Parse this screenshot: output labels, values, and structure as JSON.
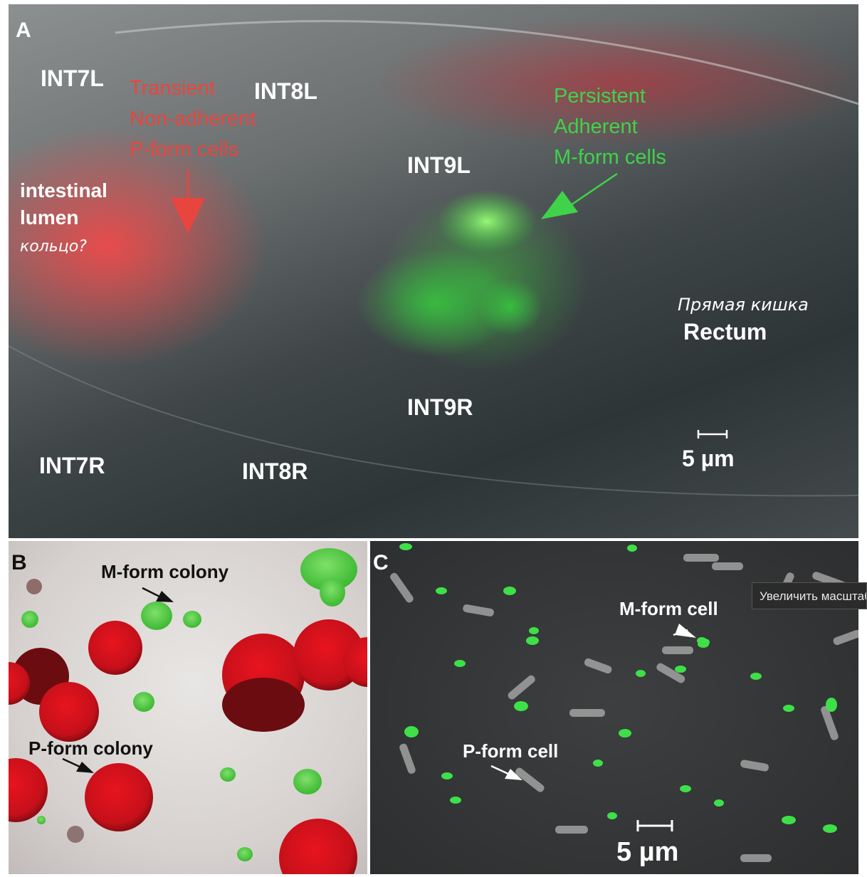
{
  "panel_a": {
    "letter": "A",
    "int7l": "INT7L",
    "int8l": "INT8L",
    "int9l": "INT9L",
    "int7r": "INT7R",
    "int8r": "INT8R",
    "int9r": "INT9R",
    "lumen_line1": "intestinal",
    "lumen_line2": "lumen",
    "lumen_note": "кольцо?",
    "transient_line1": "Transient",
    "transient_line2": "Non-adherent",
    "transient_line3": "P-form cells",
    "persistent_line1": "Persistent",
    "persistent_line2": "Adherent",
    "persistent_line3": "M-form cells",
    "rectum_note": "Прямая кишка",
    "rectum": "Rectum",
    "scale": "5 µm",
    "colors": {
      "red_text": "#e8453f",
      "green_text": "#3ed34a"
    }
  },
  "panel_b": {
    "letter": "B",
    "m_colony": "M-form colony",
    "p_colony": "P-form colony",
    "colors": {
      "p_colony": "#c8141c",
      "m_colony": "#48c83c"
    }
  },
  "panel_c": {
    "letter": "C",
    "m_cell": "M-form cell",
    "p_cell": "P-form cell",
    "scale": "5 µm"
  },
  "tooltip": {
    "text": "Увеличить масштаб"
  }
}
